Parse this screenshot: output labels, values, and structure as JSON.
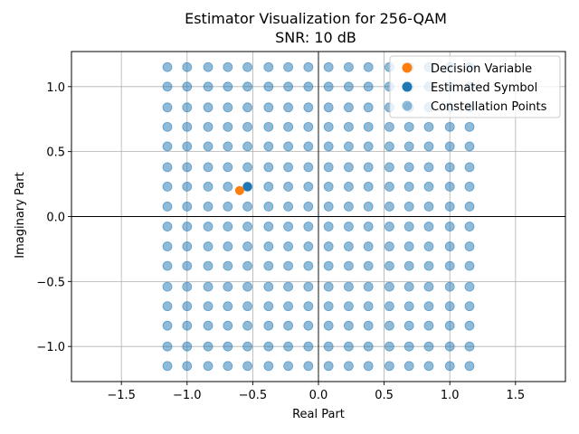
{
  "chart_data": {
    "type": "scatter",
    "title": "Estimator Visualization for 256-QAM",
    "subtitle": "SNR: 10 dB",
    "xlabel": "Real Part",
    "ylabel": "Imaginary Part",
    "xlim": [
      -1.88,
      1.88
    ],
    "ylim": [
      -1.27,
      1.27
    ],
    "xticks": [
      -1.5,
      -1.0,
      -0.5,
      0.0,
      0.5,
      1.0,
      1.5
    ],
    "xtick_labels": [
      "−1.5",
      "−1.0",
      "−0.5",
      "0.0",
      "0.5",
      "1.0",
      "1.5"
    ],
    "yticks": [
      -1.0,
      -0.5,
      0.0,
      0.5,
      1.0
    ],
    "ytick_labels": [
      "−1.0",
      "−0.5",
      "0.0",
      "0.5",
      "1.0"
    ],
    "grid": true,
    "legend_position": "top-right",
    "constellation_levels": [
      -1.15,
      -1.0,
      -0.84,
      -0.69,
      -0.54,
      -0.38,
      -0.23,
      -0.077,
      0.077,
      0.23,
      0.38,
      0.54,
      0.69,
      0.84,
      1.0,
      1.15
    ],
    "series": [
      {
        "name": "Decision Variable",
        "color": "#ff7f0e",
        "points": [
          [
            -0.6,
            0.2
          ]
        ]
      },
      {
        "name": "Estimated Symbol",
        "color": "#1f77b4",
        "points": [
          [
            -0.54,
            0.23
          ]
        ]
      },
      {
        "name": "Constellation Points",
        "color": "#1f77b4",
        "alpha": 0.5,
        "grid_of_levels": true
      }
    ]
  }
}
